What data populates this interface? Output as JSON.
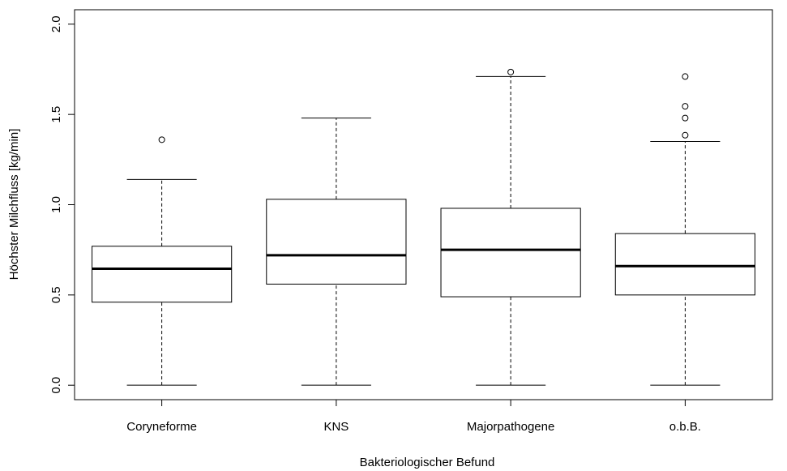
{
  "chart_data": {
    "type": "boxplot",
    "x_label": "Bakteriologischer Befund",
    "y_label": "Höchster Milchfluss [kg/min]",
    "categories": [
      "Coryneforme",
      "KNS",
      "Majorpathogene",
      "o.b.B."
    ],
    "min": [
      0,
      0,
      0,
      0
    ],
    "q1": [
      0.46,
      0.56,
      0.49,
      0.5
    ],
    "median": [
      0.645,
      0.72,
      0.75,
      0.66
    ],
    "q3": [
      0.77,
      1.03,
      0.98,
      0.84
    ],
    "max": [
      1.14,
      1.48,
      1.71,
      1.35
    ],
    "outliers": [
      [
        1.36
      ],
      [],
      [
        1.735
      ],
      [
        1.385,
        1.48,
        1.545,
        1.71
      ]
    ],
    "color": "#000000",
    "ylim": [
      -0.08,
      2.08
    ],
    "yticks": [
      {
        "value": 0,
        "label": "0.0"
      },
      {
        "value": 0.5,
        "label": "0.5"
      },
      {
        "value": 1,
        "label": "1.0"
      },
      {
        "value": 1.5,
        "label": "1.5"
      },
      {
        "value": 2,
        "label": "2.0"
      }
    ]
  }
}
